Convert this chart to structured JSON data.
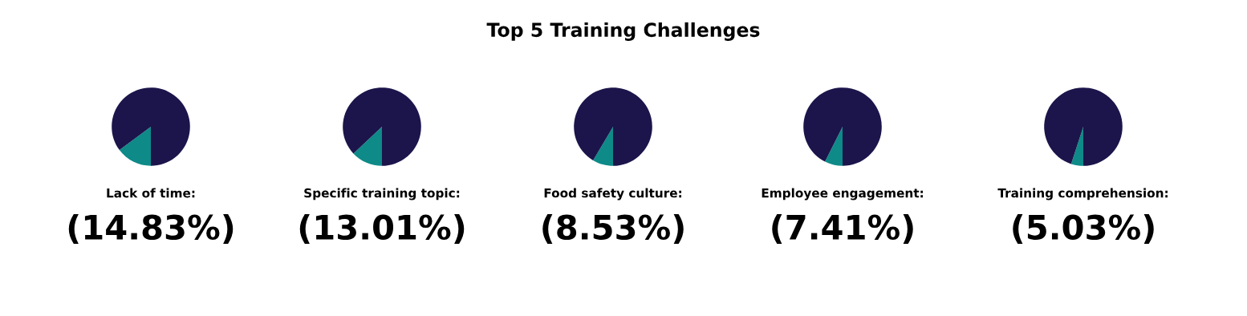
{
  "chart_data": [
    {
      "type": "other",
      "title": "Top 5 Training Challenges"
    },
    {
      "type": "pie",
      "xlabel": "Lack of time:",
      "categories": [
        null,
        null
      ],
      "values": [
        14.83,
        85.17
      ],
      "colors": [
        "#0e8a88",
        "#1b154b"
      ],
      "value_labels": [
        "(14.83%)",
        null
      ]
    },
    {
      "type": "pie",
      "xlabel": "Specific training topic:",
      "categories": [
        null,
        null
      ],
      "values": [
        13.01,
        86.99
      ],
      "colors": [
        "#0e8a88",
        "#1b154b"
      ],
      "value_labels": [
        "(13.01%)",
        null
      ]
    },
    {
      "type": "pie",
      "xlabel": "Food safety culture:",
      "categories": [
        null,
        null
      ],
      "values": [
        8.53,
        91.47
      ],
      "colors": [
        "#0e8a88",
        "#1b154b"
      ],
      "value_labels": [
        "(8.53%)",
        null
      ]
    },
    {
      "type": "pie",
      "xlabel": "Employee engagement:",
      "categories": [
        null,
        null
      ],
      "values": [
        7.41,
        92.59
      ],
      "colors": [
        "#0e8a88",
        "#1b154b"
      ],
      "value_labels": [
        "(7.41%)",
        null
      ]
    },
    {
      "type": "pie",
      "xlabel": "Training comprehension:",
      "categories": [
        null,
        null
      ],
      "values": [
        5.03,
        94.97
      ],
      "colors": [
        "#0e8a88",
        "#1b154b"
      ],
      "value_labels": [
        "(5.03%)",
        null
      ]
    }
  ]
}
